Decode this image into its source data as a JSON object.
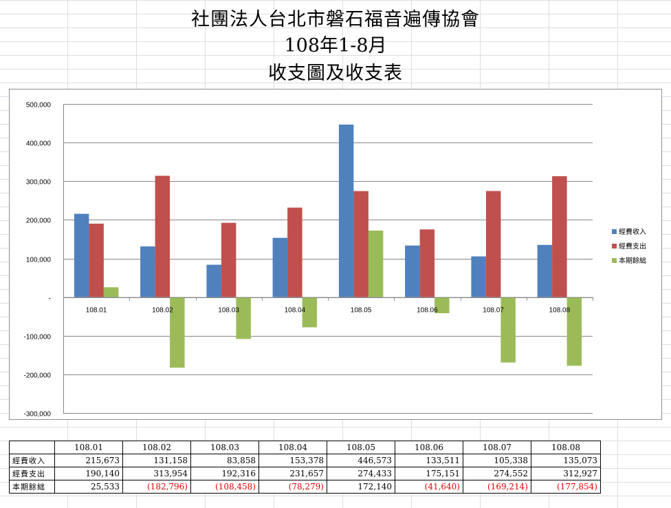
{
  "titles": {
    "org": "社團法人台北市磐石福音遍傳協會",
    "period": "108年1-8月",
    "subtitle": "收支圖及收支表"
  },
  "chart_data": {
    "type": "bar",
    "categories": [
      "108.01",
      "108.02",
      "108.03",
      "108.04",
      "108.05",
      "108.06",
      "108.07",
      "108.08"
    ],
    "series": [
      {
        "name": "經費收入",
        "color": "#4f81bd",
        "values": [
          215673,
          131158,
          83858,
          153378,
          446573,
          133511,
          105338,
          135073
        ]
      },
      {
        "name": "經費支出",
        "color": "#c0504d",
        "values": [
          190140,
          313954,
          192316,
          231657,
          274433,
          175151,
          274552,
          312927
        ]
      },
      {
        "name": "本期餘絀",
        "color": "#9bbb59",
        "values": [
          25533,
          -182796,
          -108458,
          -78279,
          172140,
          -41640,
          -169214,
          -177854
        ]
      }
    ],
    "ylim": [
      -300000,
      500000
    ],
    "yticks": [
      500000,
      400000,
      300000,
      200000,
      100000,
      0,
      -100000,
      -200000,
      -300000
    ],
    "ytick_labels": [
      "500,000",
      "400,000",
      "300,000",
      "200,000",
      "100,000",
      "-",
      "-100,000",
      "-200,000",
      "-300,000"
    ],
    "grid": true,
    "legend": "right"
  },
  "table": {
    "headers": [
      "108.01",
      "108.02",
      "108.03",
      "108.04",
      "108.05",
      "108.06",
      "108.07",
      "108.08"
    ],
    "rows": [
      {
        "label": "經費收入",
        "cells": [
          "215,673",
          "131,158",
          "83,858",
          "153,378",
          "446,573",
          "133,511",
          "105,338",
          "135,073"
        ]
      },
      {
        "label": "經費支出",
        "cells": [
          "190,140",
          "313,954",
          "192,316",
          "231,657",
          "274,433",
          "175,151",
          "274,552",
          "312,927"
        ]
      },
      {
        "label": "本期餘絀",
        "cells": [
          "25,533",
          "(182,796)",
          "(108,458)",
          "(78,279)",
          "172,140",
          "(41,640)",
          "(169,214)",
          "(177,854)"
        ]
      }
    ]
  }
}
